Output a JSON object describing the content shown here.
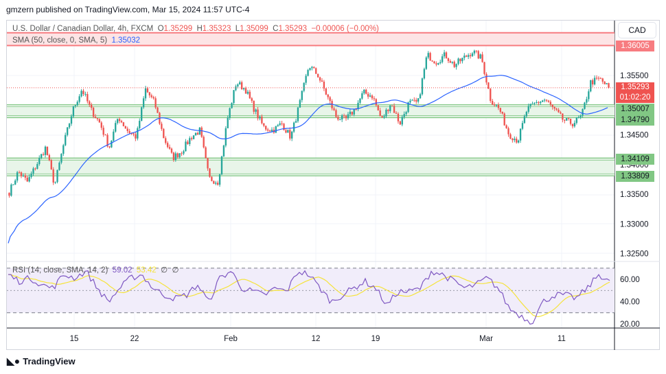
{
  "header": {
    "published": "gmzern published on TradingView.com, Mar 15, 2024 11:57 UTC-4"
  },
  "legend": {
    "symbol": "U.S. Dollar / Canadian Dollar, 4h, FXCM",
    "o_label": "O",
    "open": "1.35299",
    "h_label": "H",
    "high": "1.35323",
    "l_label": "L",
    "low": "1.35099",
    "c_label": "C",
    "close": "1.35293",
    "change": "−0.00006 (−0.00%)",
    "sma_label": "SMA (50, close, 0, SMA, 5)",
    "sma_value": "1.35032",
    "rsi_label": "RSI (14, close, SMA, 14, 2)",
    "rsi_value": "59.02",
    "rsi_sma_value": "53.42",
    "rsi_extra1": "∅",
    "rsi_extra2": "∅"
  },
  "currency_button": "CAD",
  "price_tags": {
    "resistance": "1.36005",
    "last": "1.35293",
    "countdown": "01:02:20",
    "zone1_top": "1.35007",
    "zone1_bottom": "1.34790",
    "zone2_top": "1.34109",
    "zone2_bottom": "1.33809"
  },
  "colors": {
    "up": "#26a69a",
    "down": "#ef5350",
    "sma": "#2962ff",
    "rsi": "#7e57c2",
    "rsi_sma": "#f5e33a",
    "red_zone": "#f77c80",
    "green_zone": "#81c784"
  },
  "footer": {
    "brand": "TradingView"
  },
  "chart_data": {
    "type": "candlestick",
    "interval": "4h",
    "price_axis_ticks": [
      "1.35500",
      "1.34500",
      "1.34000",
      "1.33500",
      "1.33000",
      "1.32500"
    ],
    "rsi_axis_ticks": [
      "60.00",
      "40.00",
      "20.00"
    ],
    "x_axis_ticks": [
      "15",
      "22",
      "Feb",
      "12",
      "19",
      "Mar",
      "11"
    ],
    "zones": [
      {
        "type": "resistance",
        "low": 1.36005,
        "high": 1.3622
      },
      {
        "type": "support",
        "low": 1.3479,
        "high": 1.35007
      },
      {
        "type": "support",
        "low": 1.33809,
        "high": 1.34109
      }
    ],
    "close_path": [
      1.33535,
      1.33882,
      1.33708,
      1.33997,
      1.34286,
      1.3365,
      1.34344,
      1.34922,
      1.35269,
      1.34922,
      1.34691,
      1.34286,
      1.34806,
      1.34575,
      1.3446,
      1.35269,
      1.35038,
      1.3446,
      1.34113,
      1.34228,
      1.3446,
      1.34575,
      1.33766,
      1.33708,
      1.34749,
      1.35384,
      1.35269,
      1.34922,
      1.34633,
      1.34575,
      1.34691,
      1.3446,
      1.35038,
      1.35673,
      1.355,
      1.35153,
      1.34806,
      1.34749,
      1.34922,
      1.35211,
      1.35153,
      1.34749,
      1.35038,
      1.34691,
      1.35038,
      1.35038,
      1.35847,
      1.35731,
      1.35847,
      1.35673,
      1.35789,
      1.35905,
      1.35789,
      1.35095,
      1.34922,
      1.34517,
      1.34402,
      1.34922,
      1.35038,
      1.35095,
      1.34922,
      1.34749,
      1.34691,
      1.34806,
      1.35384,
      1.35442,
      1.35293
    ],
    "rsi_path": [
      64.3,
      58.2,
      61.2,
      55.1,
      52,
      64.3,
      61.2,
      67.4,
      52,
      39.7,
      52,
      61.2,
      64.3,
      52,
      45.9,
      42.9,
      45.9,
      55.1,
      39.7,
      61.2,
      67.4,
      52,
      48.9,
      45.9,
      52,
      48.9,
      67.4,
      64.3,
      52,
      39.7,
      45.9,
      52,
      58.2,
      52,
      36.6,
      48.9,
      48.9,
      52,
      67.4,
      64.3,
      58.2,
      52,
      55.1,
      61.2,
      52,
      33.6,
      27.5,
      21.3,
      39.7,
      45.9,
      45.9,
      42.9,
      52,
      64.3,
      59.02
    ],
    "rsi_levels": [
      70,
      50,
      30
    ]
  }
}
